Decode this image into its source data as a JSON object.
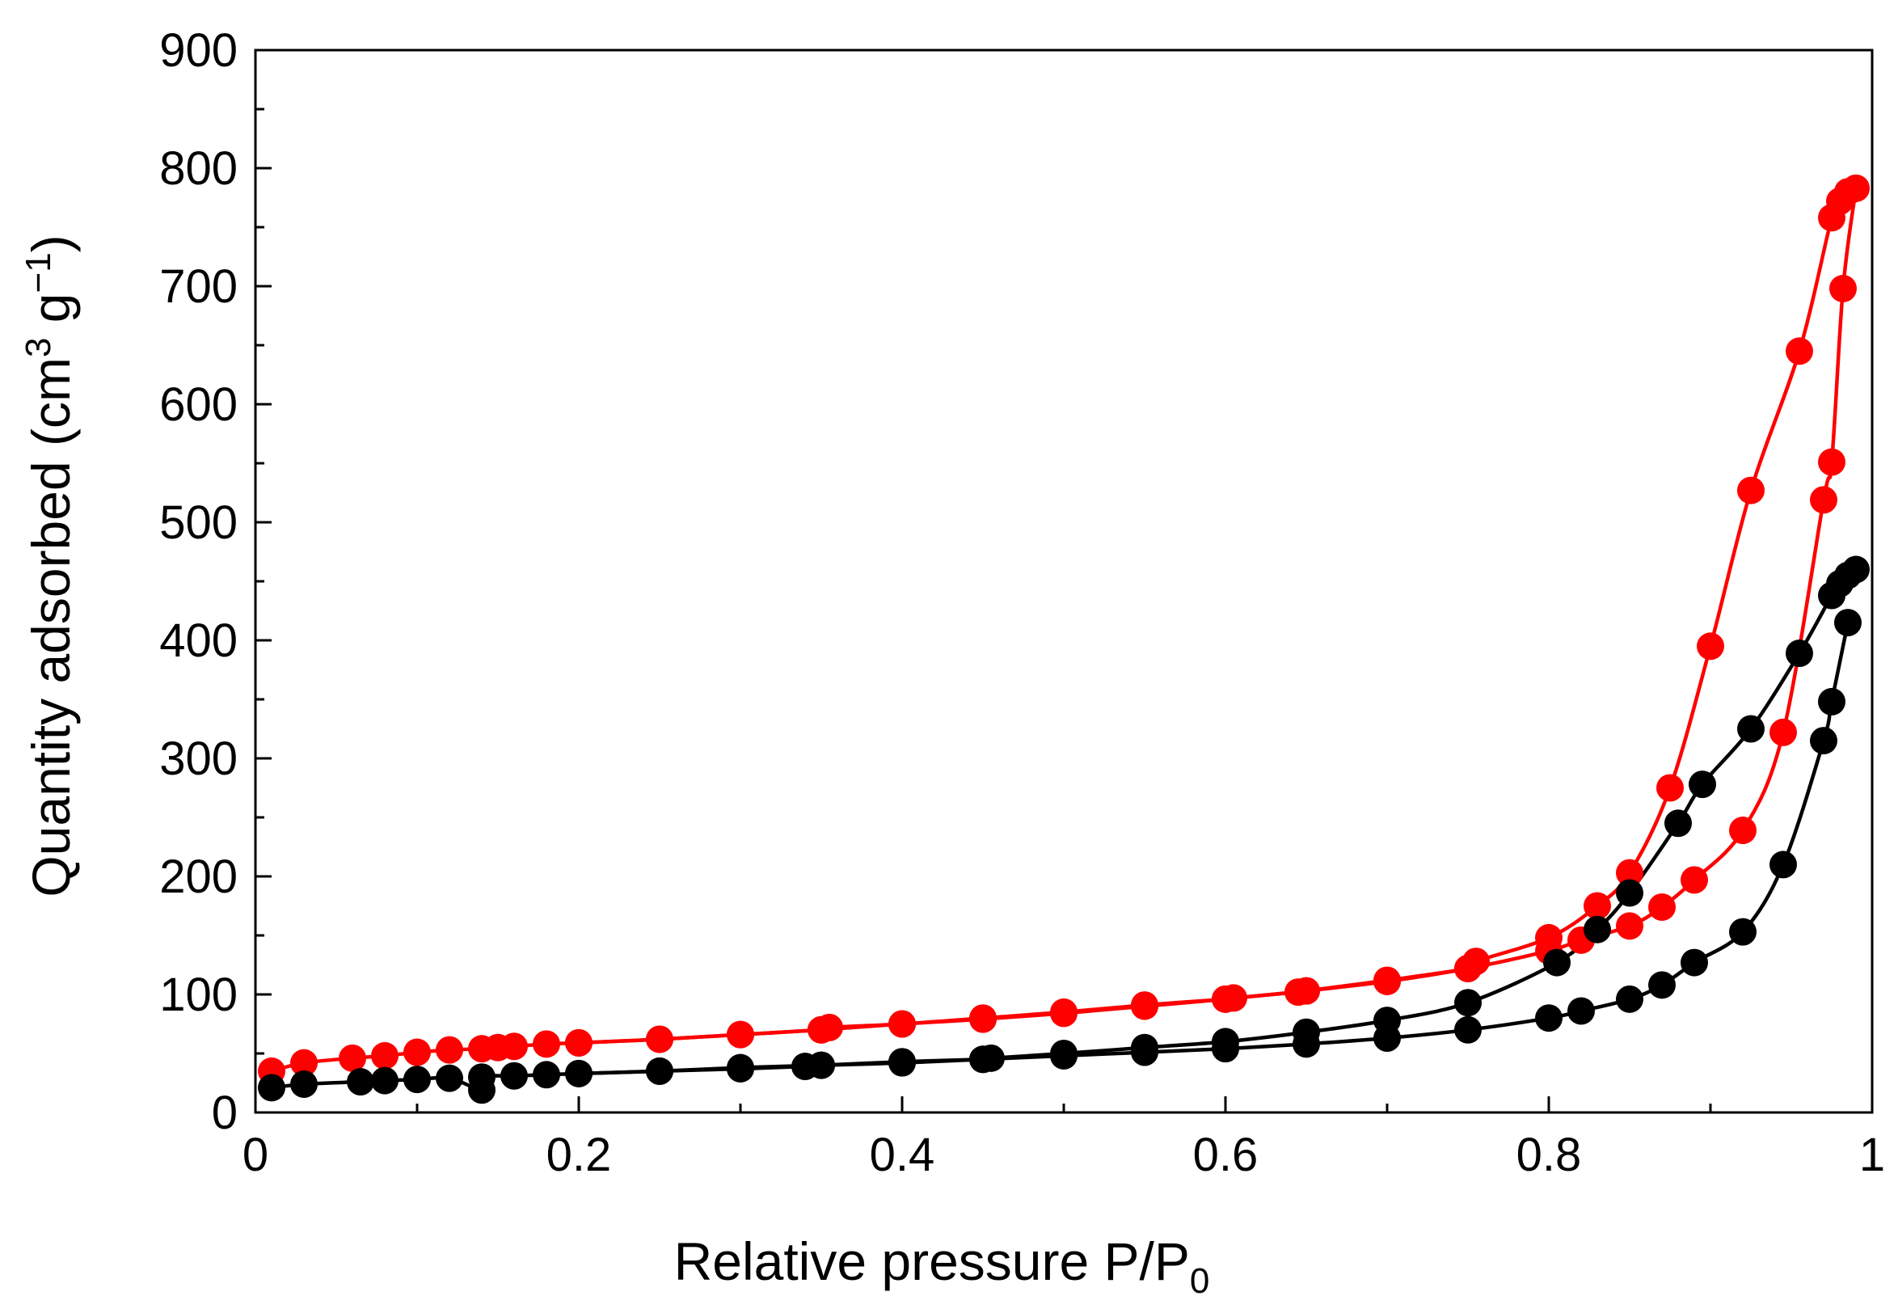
{
  "chart_data": {
    "type": "line",
    "title": "",
    "xlabel": "Relative pressure P/P",
    "xlabel_subscript": "0",
    "ylabel": "Quantity adsorbed (cm",
    "ylabel_sup1": "3",
    "ylabel_mid": " g",
    "ylabel_sup2": "−1",
    "ylabel_end": ")",
    "xlim": [
      0,
      1
    ],
    "ylim": [
      0,
      900
    ],
    "x_ticks": [
      0,
      0.2,
      0.4,
      0.6,
      0.8,
      1
    ],
    "x_tick_labels": [
      "0",
      "0.2",
      "0.4",
      "0.6",
      "0.8",
      "1"
    ],
    "y_ticks": [
      0,
      100,
      200,
      300,
      400,
      500,
      600,
      700,
      800,
      900
    ],
    "y_tick_labels": [
      "0",
      "100",
      "200",
      "300",
      "400",
      "500",
      "600",
      "700",
      "800",
      "900"
    ],
    "grid": false,
    "legend": "none",
    "series": [
      {
        "name": "red-adsorption",
        "color": "#ff0000",
        "x": [
          0.01,
          0.03,
          0.06,
          0.08,
          0.1,
          0.12,
          0.14,
          0.15,
          0.16,
          0.18,
          0.2,
          0.25,
          0.3,
          0.35,
          0.4,
          0.45,
          0.5,
          0.55,
          0.6,
          0.65,
          0.7,
          0.75,
          0.8,
          0.82,
          0.85,
          0.87,
          0.89,
          0.92,
          0.945,
          0.97,
          0.975,
          0.982,
          0.99
        ],
        "y": [
          35,
          42,
          46,
          48,
          51,
          53,
          54,
          55,
          56,
          58,
          59,
          62,
          66,
          70,
          75,
          79,
          84,
          90,
          96,
          103,
          111,
          122,
          137,
          146,
          158,
          174,
          197,
          239,
          322,
          519,
          551,
          698,
          783
        ]
      },
      {
        "name": "red-desorption",
        "color": "#ff0000",
        "x": [
          0.99,
          0.985,
          0.98,
          0.975,
          0.955,
          0.925,
          0.9,
          0.875,
          0.85,
          0.83,
          0.8,
          0.755,
          0.75,
          0.7,
          0.65,
          0.645,
          0.605,
          0.6,
          0.55,
          0.5,
          0.45,
          0.4,
          0.355,
          0.35,
          0.3,
          0.25,
          0.2
        ],
        "y": [
          783,
          780,
          772,
          758,
          645,
          527,
          395,
          275,
          203,
          175,
          148,
          128,
          122,
          112,
          103,
          102,
          97,
          96,
          91,
          85,
          80,
          75,
          72,
          70,
          66,
          62,
          59
        ]
      },
      {
        "name": "black-adsorption",
        "color": "#000000",
        "x": [
          0.01,
          0.03,
          0.065,
          0.08,
          0.1,
          0.12,
          0.14,
          0.14,
          0.16,
          0.18,
          0.2,
          0.25,
          0.3,
          0.34,
          0.35,
          0.4,
          0.45,
          0.5,
          0.55,
          0.6,
          0.65,
          0.7,
          0.75,
          0.8,
          0.82,
          0.85,
          0.87,
          0.89,
          0.92,
          0.945,
          0.97,
          0.975,
          0.985
        ],
        "y": [
          21,
          24,
          26,
          27,
          28,
          29,
          19,
          30,
          31,
          32,
          33,
          35,
          37,
          39,
          40,
          42,
          45,
          48,
          51,
          54,
          58,
          63,
          70,
          80,
          86,
          96,
          108,
          127,
          153,
          210,
          315,
          348,
          415
        ]
      },
      {
        "name": "black-desorption",
        "color": "#000000",
        "x": [
          0.99,
          0.985,
          0.98,
          0.975,
          0.955,
          0.925,
          0.895,
          0.88,
          0.85,
          0.83,
          0.805,
          0.75,
          0.7,
          0.65,
          0.6,
          0.55,
          0.5,
          0.455,
          0.45,
          0.4,
          0.35,
          0.3,
          0.25,
          0.2
        ],
        "y": [
          460,
          455,
          448,
          438,
          389,
          325,
          278,
          245,
          186,
          155,
          127,
          93,
          78,
          68,
          60,
          55,
          50,
          46,
          45,
          43,
          40,
          38,
          35,
          33
        ]
      }
    ]
  }
}
